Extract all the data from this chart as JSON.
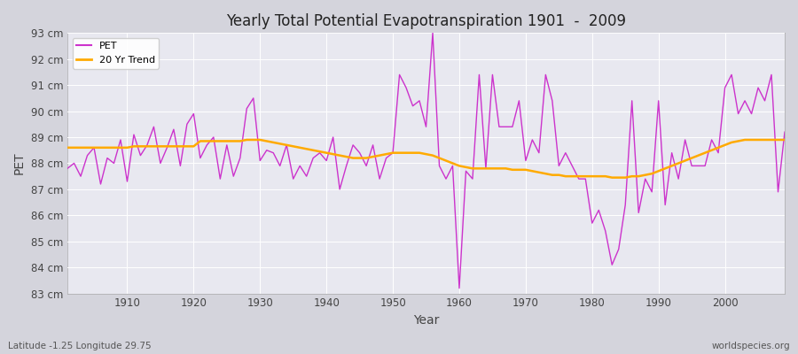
{
  "title": "Yearly Total Potential Evapotranspiration 1901  -  2009",
  "ylabel": "PET",
  "xlabel": "Year",
  "footnote_left": "Latitude -1.25 Longitude 29.75",
  "footnote_right": "worldspecies.org",
  "pet_color": "#cc33cc",
  "trend_color": "#ffaa00",
  "bg_color": "#e0e0e8",
  "axes_bg_color": "#e8e8f0",
  "grid_color": "#ffffff",
  "ylim": [
    83,
    93
  ],
  "yticks": [
    83,
    84,
    85,
    86,
    87,
    88,
    89,
    90,
    91,
    92,
    93
  ],
  "xlim": [
    1901,
    2009
  ],
  "xticks": [
    1910,
    1920,
    1930,
    1940,
    1950,
    1960,
    1970,
    1980,
    1990,
    2000
  ],
  "years": [
    1901,
    1902,
    1903,
    1904,
    1905,
    1906,
    1907,
    1908,
    1909,
    1910,
    1911,
    1912,
    1913,
    1914,
    1915,
    1916,
    1917,
    1918,
    1919,
    1920,
    1921,
    1922,
    1923,
    1924,
    1925,
    1926,
    1927,
    1928,
    1929,
    1930,
    1931,
    1932,
    1933,
    1934,
    1935,
    1936,
    1937,
    1938,
    1939,
    1940,
    1941,
    1942,
    1943,
    1944,
    1945,
    1946,
    1947,
    1948,
    1949,
    1950,
    1951,
    1952,
    1953,
    1954,
    1955,
    1956,
    1957,
    1958,
    1959,
    1960,
    1961,
    1962,
    1963,
    1964,
    1965,
    1966,
    1967,
    1968,
    1969,
    1970,
    1971,
    1972,
    1973,
    1974,
    1975,
    1976,
    1977,
    1978,
    1979,
    1980,
    1981,
    1982,
    1983,
    1984,
    1985,
    1986,
    1987,
    1988,
    1989,
    1990,
    1991,
    1992,
    1993,
    1994,
    1995,
    1996,
    1997,
    1998,
    1999,
    2000,
    2001,
    2002,
    2003,
    2004,
    2005,
    2006,
    2007,
    2008,
    2009
  ],
  "pet_values": [
    87.8,
    88.0,
    87.5,
    88.3,
    88.6,
    87.2,
    88.2,
    88.0,
    88.9,
    87.3,
    89.1,
    88.3,
    88.7,
    89.4,
    88.0,
    88.6,
    89.3,
    87.9,
    89.5,
    89.9,
    88.2,
    88.7,
    89.0,
    87.4,
    88.7,
    87.5,
    88.2,
    90.1,
    90.5,
    88.1,
    88.5,
    88.4,
    87.9,
    88.7,
    87.4,
    87.9,
    87.5,
    88.2,
    88.4,
    88.1,
    89.0,
    87.0,
    87.9,
    88.7,
    88.4,
    87.9,
    88.7,
    87.4,
    88.2,
    88.4,
    91.4,
    90.9,
    90.2,
    90.4,
    89.4,
    93.0,
    87.9,
    87.4,
    87.9,
    83.2,
    87.7,
    87.4,
    91.4,
    87.8,
    91.4,
    89.4,
    89.4,
    89.4,
    90.4,
    88.1,
    88.9,
    88.4,
    91.4,
    90.4,
    87.9,
    88.4,
    87.9,
    87.4,
    87.4,
    85.7,
    86.2,
    85.4,
    84.1,
    84.7,
    86.4,
    90.4,
    86.1,
    87.4,
    86.9,
    90.4,
    86.4,
    88.4,
    87.4,
    88.9,
    87.9,
    87.9,
    87.9,
    88.9,
    88.4,
    90.9,
    91.4,
    89.9,
    90.4,
    89.9,
    90.9,
    90.4,
    91.4,
    86.9,
    89.2
  ],
  "trend_values": [
    88.6,
    88.6,
    88.6,
    88.6,
    88.6,
    88.6,
    88.6,
    88.6,
    88.6,
    88.6,
    88.65,
    88.65,
    88.65,
    88.65,
    88.65,
    88.65,
    88.65,
    88.65,
    88.65,
    88.65,
    88.85,
    88.85,
    88.85,
    88.85,
    88.85,
    88.85,
    88.85,
    88.9,
    88.9,
    88.9,
    88.85,
    88.8,
    88.75,
    88.7,
    88.65,
    88.6,
    88.55,
    88.5,
    88.45,
    88.4,
    88.35,
    88.3,
    88.25,
    88.2,
    88.2,
    88.2,
    88.25,
    88.3,
    88.35,
    88.4,
    88.4,
    88.4,
    88.4,
    88.4,
    88.35,
    88.3,
    88.2,
    88.1,
    88.0,
    87.9,
    87.85,
    87.8,
    87.8,
    87.8,
    87.8,
    87.8,
    87.8,
    87.75,
    87.75,
    87.75,
    87.7,
    87.65,
    87.6,
    87.55,
    87.55,
    87.5,
    87.5,
    87.5,
    87.5,
    87.5,
    87.5,
    87.5,
    87.45,
    87.45,
    87.45,
    87.5,
    87.5,
    87.55,
    87.6,
    87.7,
    87.8,
    87.9,
    88.0,
    88.1,
    88.2,
    88.3,
    88.4,
    88.5,
    88.6,
    88.7,
    88.8,
    88.85,
    88.9,
    88.9,
    88.9,
    88.9,
    88.9,
    88.9,
    88.9
  ]
}
